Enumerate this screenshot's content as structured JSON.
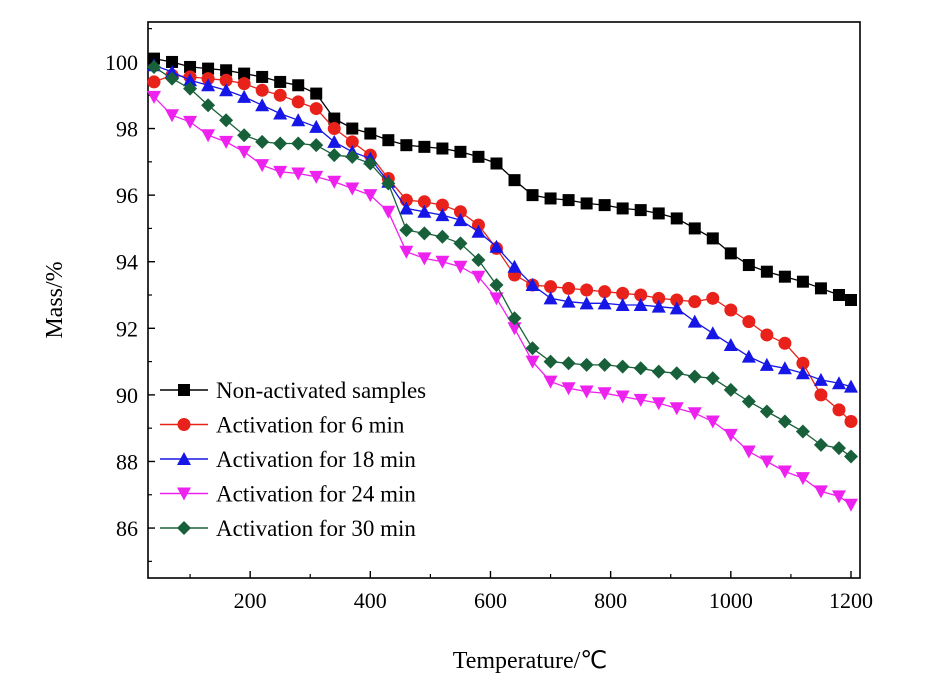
{
  "chart_data": {
    "type": "line",
    "title": "",
    "xlabel": "Temperature/℃",
    "ylabel": "Mass/%",
    "xlim": [
      30,
      1215
    ],
    "ylim": [
      84.5,
      101.2
    ],
    "x_ticks": [
      200,
      400,
      600,
      800,
      1000,
      1200
    ],
    "y_ticks": [
      86,
      88,
      90,
      92,
      94,
      96,
      98,
      100
    ],
    "grid": false,
    "legend_position": "bottom-left",
    "x": [
      40,
      70,
      100,
      130,
      160,
      190,
      220,
      250,
      280,
      310,
      340,
      370,
      400,
      430,
      460,
      490,
      520,
      550,
      580,
      610,
      640,
      670,
      700,
      730,
      760,
      790,
      820,
      850,
      880,
      910,
      940,
      970,
      1000,
      1030,
      1060,
      1090,
      1120,
      1150,
      1180,
      1200
    ],
    "series": [
      {
        "name": "Non-activated samples",
        "color": "#000000",
        "marker": "square",
        "values": [
          100.1,
          100.0,
          99.85,
          99.8,
          99.75,
          99.65,
          99.55,
          99.4,
          99.3,
          99.05,
          98.3,
          98.0,
          97.85,
          97.65,
          97.5,
          97.45,
          97.4,
          97.3,
          97.15,
          96.95,
          96.45,
          96.0,
          95.9,
          95.85,
          95.75,
          95.7,
          95.6,
          95.55,
          95.45,
          95.3,
          95.0,
          94.7,
          94.25,
          93.9,
          93.7,
          93.55,
          93.4,
          93.2,
          93.0,
          92.85
        ]
      },
      {
        "name": "Activation for 6 min",
        "color": "#e8221b",
        "marker": "circle",
        "values": [
          99.4,
          99.6,
          99.55,
          99.5,
          99.45,
          99.35,
          99.15,
          99.0,
          98.8,
          98.6,
          98.0,
          97.6,
          97.2,
          96.5,
          95.85,
          95.8,
          95.7,
          95.5,
          95.1,
          94.4,
          93.6,
          93.3,
          93.25,
          93.2,
          93.15,
          93.1,
          93.05,
          93.0,
          92.9,
          92.85,
          92.8,
          92.9,
          92.55,
          92.2,
          91.8,
          91.55,
          90.95,
          90.0,
          89.55,
          89.2
        ]
      },
      {
        "name": "Activation for 18 min",
        "color": "#1616e6",
        "marker": "triangle-up",
        "values": [
          99.9,
          99.7,
          99.45,
          99.3,
          99.15,
          98.95,
          98.7,
          98.45,
          98.25,
          98.05,
          97.6,
          97.3,
          97.1,
          96.4,
          95.6,
          95.5,
          95.4,
          95.25,
          94.9,
          94.45,
          93.85,
          93.3,
          92.9,
          92.8,
          92.75,
          92.75,
          92.7,
          92.7,
          92.65,
          92.6,
          92.2,
          91.85,
          91.5,
          91.15,
          90.9,
          90.8,
          90.65,
          90.45,
          90.35,
          90.25
        ]
      },
      {
        "name": "Activation for 24 min",
        "color": "#ee22ee",
        "marker": "triangle-down",
        "values": [
          98.95,
          98.4,
          98.2,
          97.8,
          97.6,
          97.3,
          96.9,
          96.7,
          96.65,
          96.55,
          96.4,
          96.2,
          96.0,
          95.5,
          94.3,
          94.1,
          94.0,
          93.85,
          93.55,
          92.9,
          92.0,
          91.0,
          90.4,
          90.2,
          90.1,
          90.05,
          89.95,
          89.85,
          89.75,
          89.6,
          89.45,
          89.2,
          88.8,
          88.3,
          88.0,
          87.7,
          87.5,
          87.1,
          86.95,
          86.7
        ]
      },
      {
        "name": "Activation for 30 min",
        "color": "#18603a",
        "marker": "diamond",
        "values": [
          99.85,
          99.5,
          99.2,
          98.7,
          98.25,
          97.8,
          97.6,
          97.55,
          97.55,
          97.5,
          97.2,
          97.15,
          96.95,
          96.35,
          94.95,
          94.85,
          94.75,
          94.55,
          94.05,
          93.3,
          92.3,
          91.4,
          91.0,
          90.95,
          90.9,
          90.9,
          90.85,
          90.8,
          90.7,
          90.65,
          90.55,
          90.5,
          90.15,
          89.8,
          89.5,
          89.2,
          88.9,
          88.5,
          88.4,
          88.15
        ]
      }
    ]
  }
}
